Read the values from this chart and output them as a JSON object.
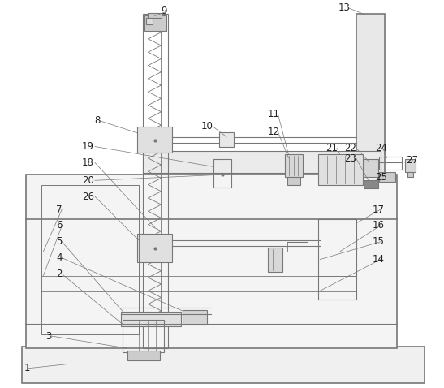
{
  "bg_color": "#ffffff",
  "lc": "#777777",
  "lw": 0.8,
  "tlw": 1.2,
  "fs": 8.5
}
